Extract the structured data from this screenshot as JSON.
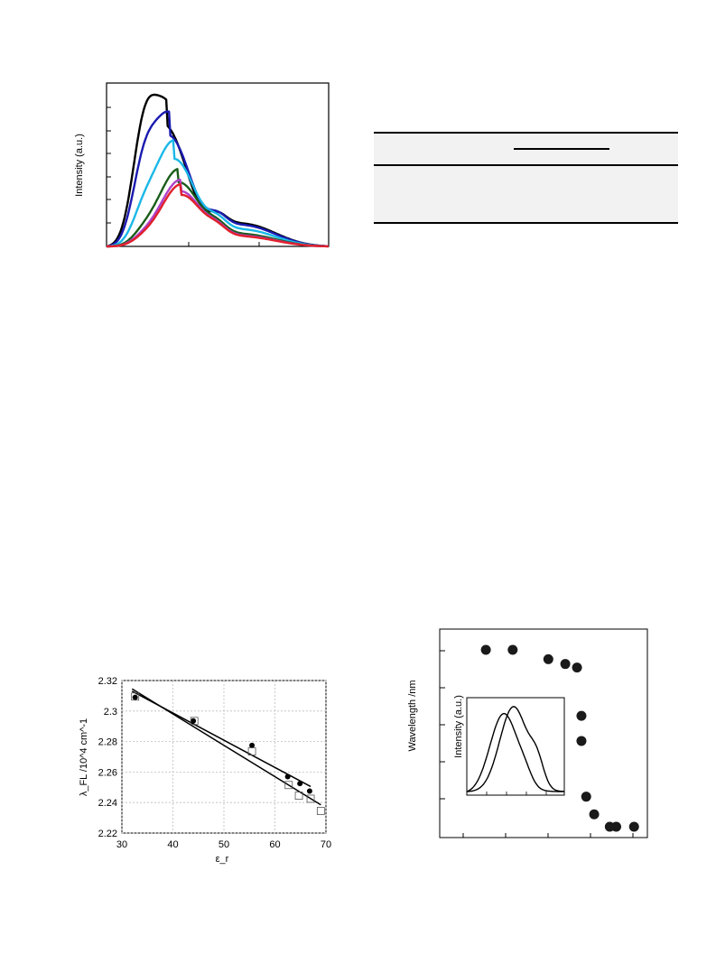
{
  "figures": {
    "spectra": {
      "ylabel": "Intensity (a.u.)",
      "colors": [
        "#000000",
        "#1a1ab0",
        "#1ab8e8",
        "#1a5c1a",
        "#b040c8",
        "#e0202c"
      ]
    },
    "table": {
      "caption": "",
      "rows": []
    },
    "emission_plot": {
      "xlabel": "ε_r",
      "ylabel": "λ_FL /10^4 cm^-1"
    },
    "wavelength_plot": {
      "ylabel": "Wavelength /nm",
      "inset_ylabel": "Intensity (a.u.)"
    }
  },
  "chart_data": [
    {
      "type": "line",
      "ylabel": "Intensity (a.u.)",
      "series": [
        {
          "color": "#000000",
          "peak_intensity": 1.0
        },
        {
          "color": "#1a1ab0",
          "peak_intensity": 0.89
        },
        {
          "color": "#1ab8e8",
          "peak_intensity": 0.7
        },
        {
          "color": "#1a5c1a",
          "peak_intensity": 0.51
        },
        {
          "color": "#b040c8",
          "peak_intensity": 0.44
        },
        {
          "color": "#e0202c",
          "peak_intensity": 0.41
        }
      ]
    },
    {
      "type": "scatter",
      "xlabel": "ε_r",
      "ylabel": "λ_FL /10^4 cm^-1",
      "xlim": [
        30,
        70
      ],
      "ylim": [
        2.22,
        2.32
      ],
      "xticks": [
        "30",
        "40",
        "50",
        "60",
        "70"
      ],
      "yticks": [
        "2.22",
        "2.24",
        "2.26",
        "2.28",
        "2.3",
        "2.32"
      ],
      "series": [
        {
          "marker": "filled-circle",
          "points": [
            [
              32.6,
              2.309
            ],
            [
              44.0,
              2.2935
            ],
            [
              55.5,
              2.2775
            ],
            [
              62.5,
              2.257
            ],
            [
              64.9,
              2.2525
            ],
            [
              66.8,
              2.2475
            ]
          ],
          "fit": [
            [
              32.0,
              2.313
            ],
            [
              67.0,
              2.2505
            ]
          ]
        },
        {
          "marker": "open-square",
          "points": [
            [
              32.6,
              2.3095
            ],
            [
              44.2,
              2.2935
            ],
            [
              55.5,
              2.2735
            ],
            [
              62.7,
              2.2515
            ],
            [
              64.7,
              2.2445
            ],
            [
              67.0,
              2.2425
            ],
            [
              69.0,
              2.2345
            ]
          ],
          "fit": [
            [
              32.0,
              2.3145
            ],
            [
              69.0,
              2.2385
            ]
          ]
        }
      ]
    },
    {
      "type": "scatter",
      "ylabel": "Wavelength /nm",
      "series": [
        {
          "marker": "filled-circle",
          "points": [
            [
              0.107,
              1.0
            ],
            [
              0.265,
              1.0
            ],
            [
              0.475,
              0.947
            ],
            [
              0.575,
              0.92
            ],
            [
              0.644,
              0.9
            ],
            [
              0.67,
              0.627
            ],
            [
              0.67,
              0.485
            ],
            [
              0.698,
              0.17
            ],
            [
              0.745,
              0.07
            ],
            [
              0.837,
              0.0
            ],
            [
              0.875,
              0.0
            ],
            [
              0.98,
              0.0
            ]
          ]
        }
      ],
      "inset": {
        "type": "line",
        "ylabel": "Intensity (a.u.)",
        "series": [
          {
            "peak_position": 0.38,
            "peak_intensity": 0.9
          },
          {
            "peak_position": 0.48,
            "peak_intensity": 0.98
          }
        ]
      }
    }
  ]
}
